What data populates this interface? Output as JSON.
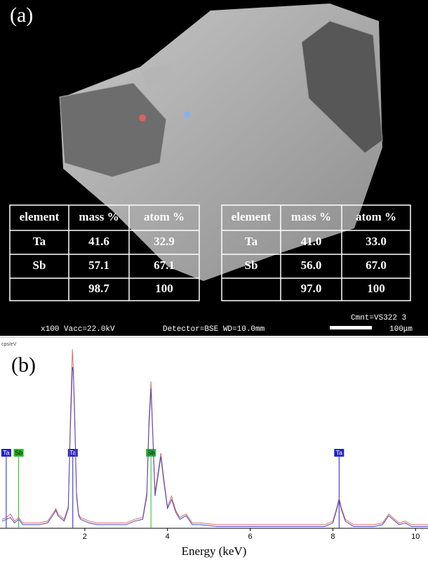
{
  "panel_a": {
    "label": "(a)",
    "tables": [
      {
        "header": [
          "element",
          "mass %",
          "atom %"
        ],
        "rows": [
          [
            "Ta",
            "41.6",
            "32.9"
          ],
          [
            "Sb",
            "57.1",
            "67.1"
          ]
        ],
        "total": [
          "98.7",
          "100"
        ]
      },
      {
        "header": [
          "element",
          "mass %",
          "atom %"
        ],
        "rows": [
          [
            "Ta",
            "41.0",
            "33.0"
          ],
          [
            "Sb",
            "56.0",
            "67.0"
          ]
        ],
        "total": [
          "97.0",
          "100"
        ]
      }
    ],
    "comment": "Cmnt=VS322 3",
    "magnification": "x100 Vacc=22.0kV",
    "detector": "Detector=BSE WD=10.0mm",
    "scale": "100μm"
  },
  "chart_data": {
    "type": "line",
    "panel_label": "(b)",
    "y_label": "cps/eV",
    "x_label": "Energy (keV)",
    "x": [
      0,
      0.1,
      0.2,
      0.3,
      0.4,
      0.5,
      0.7,
      0.9,
      1.1,
      1.25,
      1.3,
      1.35,
      1.5,
      1.6,
      1.65,
      1.7,
      1.72,
      1.75,
      1.8,
      1.85,
      1.9,
      2.0,
      2.1,
      2.3,
      2.6,
      3.0,
      3.2,
      3.4,
      3.5,
      3.55,
      3.6,
      3.65,
      3.7,
      3.75,
      3.84,
      3.9,
      4.0,
      4.1,
      4.2,
      4.3,
      4.45,
      4.6,
      4.8,
      5.2,
      6.0,
      7.0,
      7.8,
      8.0,
      8.1,
      8.15,
      8.2,
      8.3,
      8.5,
      9.0,
      9.2,
      9.35,
      9.45,
      9.6,
      9.75,
      9.9,
      10.3
    ],
    "series": [
      {
        "color": "#e06a6a",
        "values": [
          5,
          6,
          8,
          4,
          6,
          3,
          3,
          3,
          4,
          9,
          11,
          8,
          5,
          12,
          60,
          100,
          90,
          70,
          20,
          8,
          6,
          5,
          4,
          3,
          3,
          3,
          5,
          6,
          20,
          60,
          82,
          50,
          20,
          28,
          42,
          30,
          12,
          18,
          10,
          6,
          8,
          3,
          3,
          2,
          2,
          2,
          2,
          4,
          12,
          17,
          12,
          5,
          2,
          2,
          3,
          8,
          6,
          3,
          4,
          2,
          2
        ]
      },
      {
        "color": "#4a4ab8",
        "values": [
          4,
          5,
          6,
          3,
          5,
          2,
          2,
          2,
          3,
          8,
          10,
          7,
          4,
          11,
          55,
          90,
          88,
          66,
          18,
          7,
          5,
          4,
          3,
          2,
          2,
          2,
          4,
          5,
          18,
          56,
          78,
          48,
          18,
          26,
          40,
          28,
          11,
          16,
          9,
          5,
          7,
          2,
          2,
          1,
          1,
          1,
          1,
          3,
          11,
          16,
          11,
          4,
          1,
          1,
          2,
          7,
          5,
          2,
          3,
          1,
          1
        ]
      }
    ],
    "markers": [
      {
        "label": "Ta",
        "x": 0.1,
        "color": "#2020c8"
      },
      {
        "label": "Sb",
        "x": 0.4,
        "color": "#20c020"
      },
      {
        "label": "Ta",
        "x": 1.71,
        "color": "#2020c8"
      },
      {
        "label": "Sb",
        "x": 3.6,
        "color": "#20c020"
      },
      {
        "label": "Ta",
        "x": 8.15,
        "color": "#2020c8"
      }
    ],
    "xlim": [
      0,
      10.3
    ],
    "ylim": [
      0,
      100
    ],
    "xticks": [
      2,
      4,
      6,
      8,
      10
    ]
  }
}
